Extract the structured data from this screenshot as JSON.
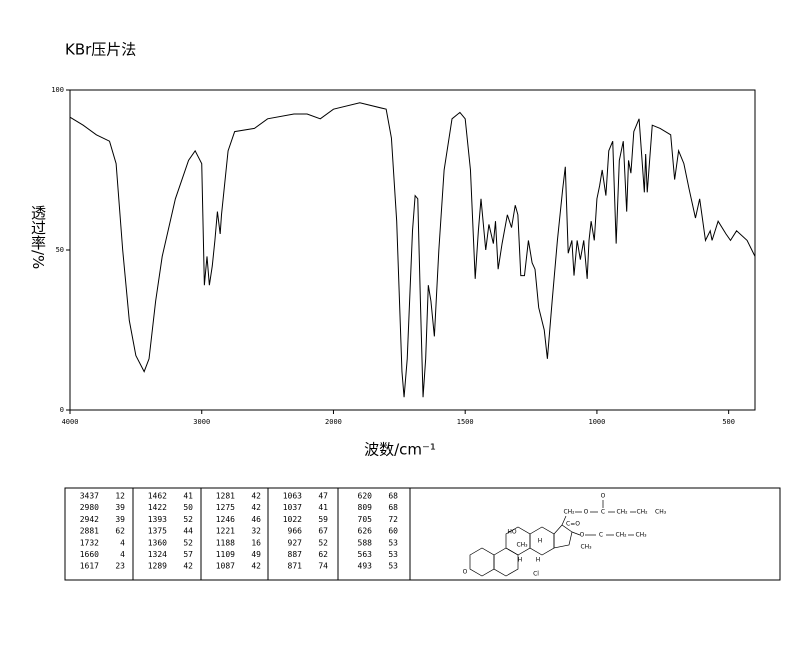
{
  "chart_data": {
    "type": "line",
    "title": "KBr压片法",
    "x_label": "波数/cm⁻¹",
    "y_label": "透过率/%",
    "xlim": [
      4000,
      400
    ],
    "x_scale_break": {
      "at": 2000,
      "ratio": 2
    },
    "ylim": [
      0,
      100
    ],
    "xticks": [
      4000,
      3000,
      2000,
      1500,
      1000,
      500
    ],
    "yticks": [
      0,
      50,
      100
    ],
    "grid": false,
    "series": [
      {
        "color": "#000000",
        "x": [
          4000,
          3900,
          3800,
          3700,
          3650,
          3600,
          3550,
          3500,
          3437,
          3400,
          3350,
          3300,
          3200,
          3100,
          3050,
          3000,
          2980,
          2960,
          2942,
          2920,
          2900,
          2881,
          2860,
          2850,
          2800,
          2750,
          2600,
          2500,
          2300,
          2200,
          2100,
          2000,
          1900,
          1800,
          1780,
          1760,
          1740,
          1732,
          1720,
          1700,
          1690,
          1680,
          1670,
          1660,
          1650,
          1640,
          1630,
          1617,
          1600,
          1580,
          1550,
          1520,
          1500,
          1480,
          1462,
          1450,
          1440,
          1422,
          1410,
          1393,
          1385,
          1375,
          1360,
          1340,
          1324,
          1310,
          1300,
          1289,
          1281,
          1275,
          1260,
          1246,
          1235,
          1221,
          1200,
          1188,
          1170,
          1150,
          1130,
          1120,
          1109,
          1095,
          1087,
          1075,
          1063,
          1050,
          1037,
          1030,
          1022,
          1010,
          1000,
          990,
          980,
          966,
          955,
          940,
          927,
          915,
          900,
          887,
          880,
          871,
          860,
          840,
          820,
          815,
          809,
          790,
          760,
          720,
          705,
          690,
          670,
          650,
          626,
          610,
          588,
          570,
          563,
          540,
          510,
          493,
          470,
          430,
          400
        ],
        "values": [
          91.5,
          89,
          86,
          84,
          77,
          50,
          28,
          17,
          12,
          16,
          34,
          48,
          66,
          78,
          81,
          77,
          39,
          48,
          39,
          45,
          53,
          62,
          55,
          61,
          81,
          87,
          88,
          91,
          92.5,
          92.5,
          91,
          94,
          96,
          94,
          85,
          59,
          12,
          4,
          16,
          56,
          67,
          66,
          34,
          4,
          16,
          39,
          34,
          23,
          50,
          75,
          91,
          93,
          91,
          75,
          41,
          56,
          66,
          50,
          58,
          52,
          59,
          44,
          52,
          61,
          57,
          64,
          61,
          42,
          42,
          42,
          53,
          46,
          44,
          32,
          25,
          16,
          34,
          53,
          69,
          76,
          49,
          53,
          42,
          53,
          47,
          53,
          41,
          53,
          59,
          53,
          66,
          70,
          75,
          67,
          81,
          84,
          52,
          78,
          84,
          62,
          78,
          74,
          87,
          91,
          68,
          80,
          68,
          89,
          88,
          86,
          72,
          81,
          77,
          69,
          60,
          66,
          53,
          56,
          53,
          59,
          55,
          53,
          56,
          53,
          48
        ]
      }
    ]
  },
  "peak_table": {
    "rows": [
      [
        "3437",
        "12",
        "1462",
        "41",
        "1281",
        "42",
        "1063",
        "47",
        "620",
        "68"
      ],
      [
        "2980",
        "39",
        "1422",
        "50",
        "1275",
        "42",
        "1037",
        "41",
        "809",
        "68"
      ],
      [
        "2942",
        "39",
        "1393",
        "52",
        "1246",
        "46",
        "1022",
        "59",
        "705",
        "72"
      ],
      [
        "2881",
        "62",
        "1375",
        "44",
        "1221",
        "32",
        "966",
        "67",
        "626",
        "60"
      ],
      [
        "1732",
        "4",
        "1360",
        "52",
        "1188",
        "16",
        "927",
        "52",
        "588",
        "53"
      ],
      [
        "1660",
        "4",
        "1324",
        "57",
        "1109",
        "49",
        "887",
        "62",
        "563",
        "53"
      ],
      [
        "1617",
        "23",
        "1289",
        "42",
        "1087",
        "42",
        "871",
        "74",
        "493",
        "53"
      ]
    ]
  },
  "structure": {
    "labels": [
      "O",
      "CH₂",
      "O",
      "C",
      "CH₂",
      "CH₂",
      "CH₃",
      "C=O",
      "O",
      "C",
      "CH₂",
      "CH₃",
      "HO",
      "CH₃",
      "H",
      "CH₃",
      "H",
      "H",
      "O",
      "Cl"
    ]
  }
}
